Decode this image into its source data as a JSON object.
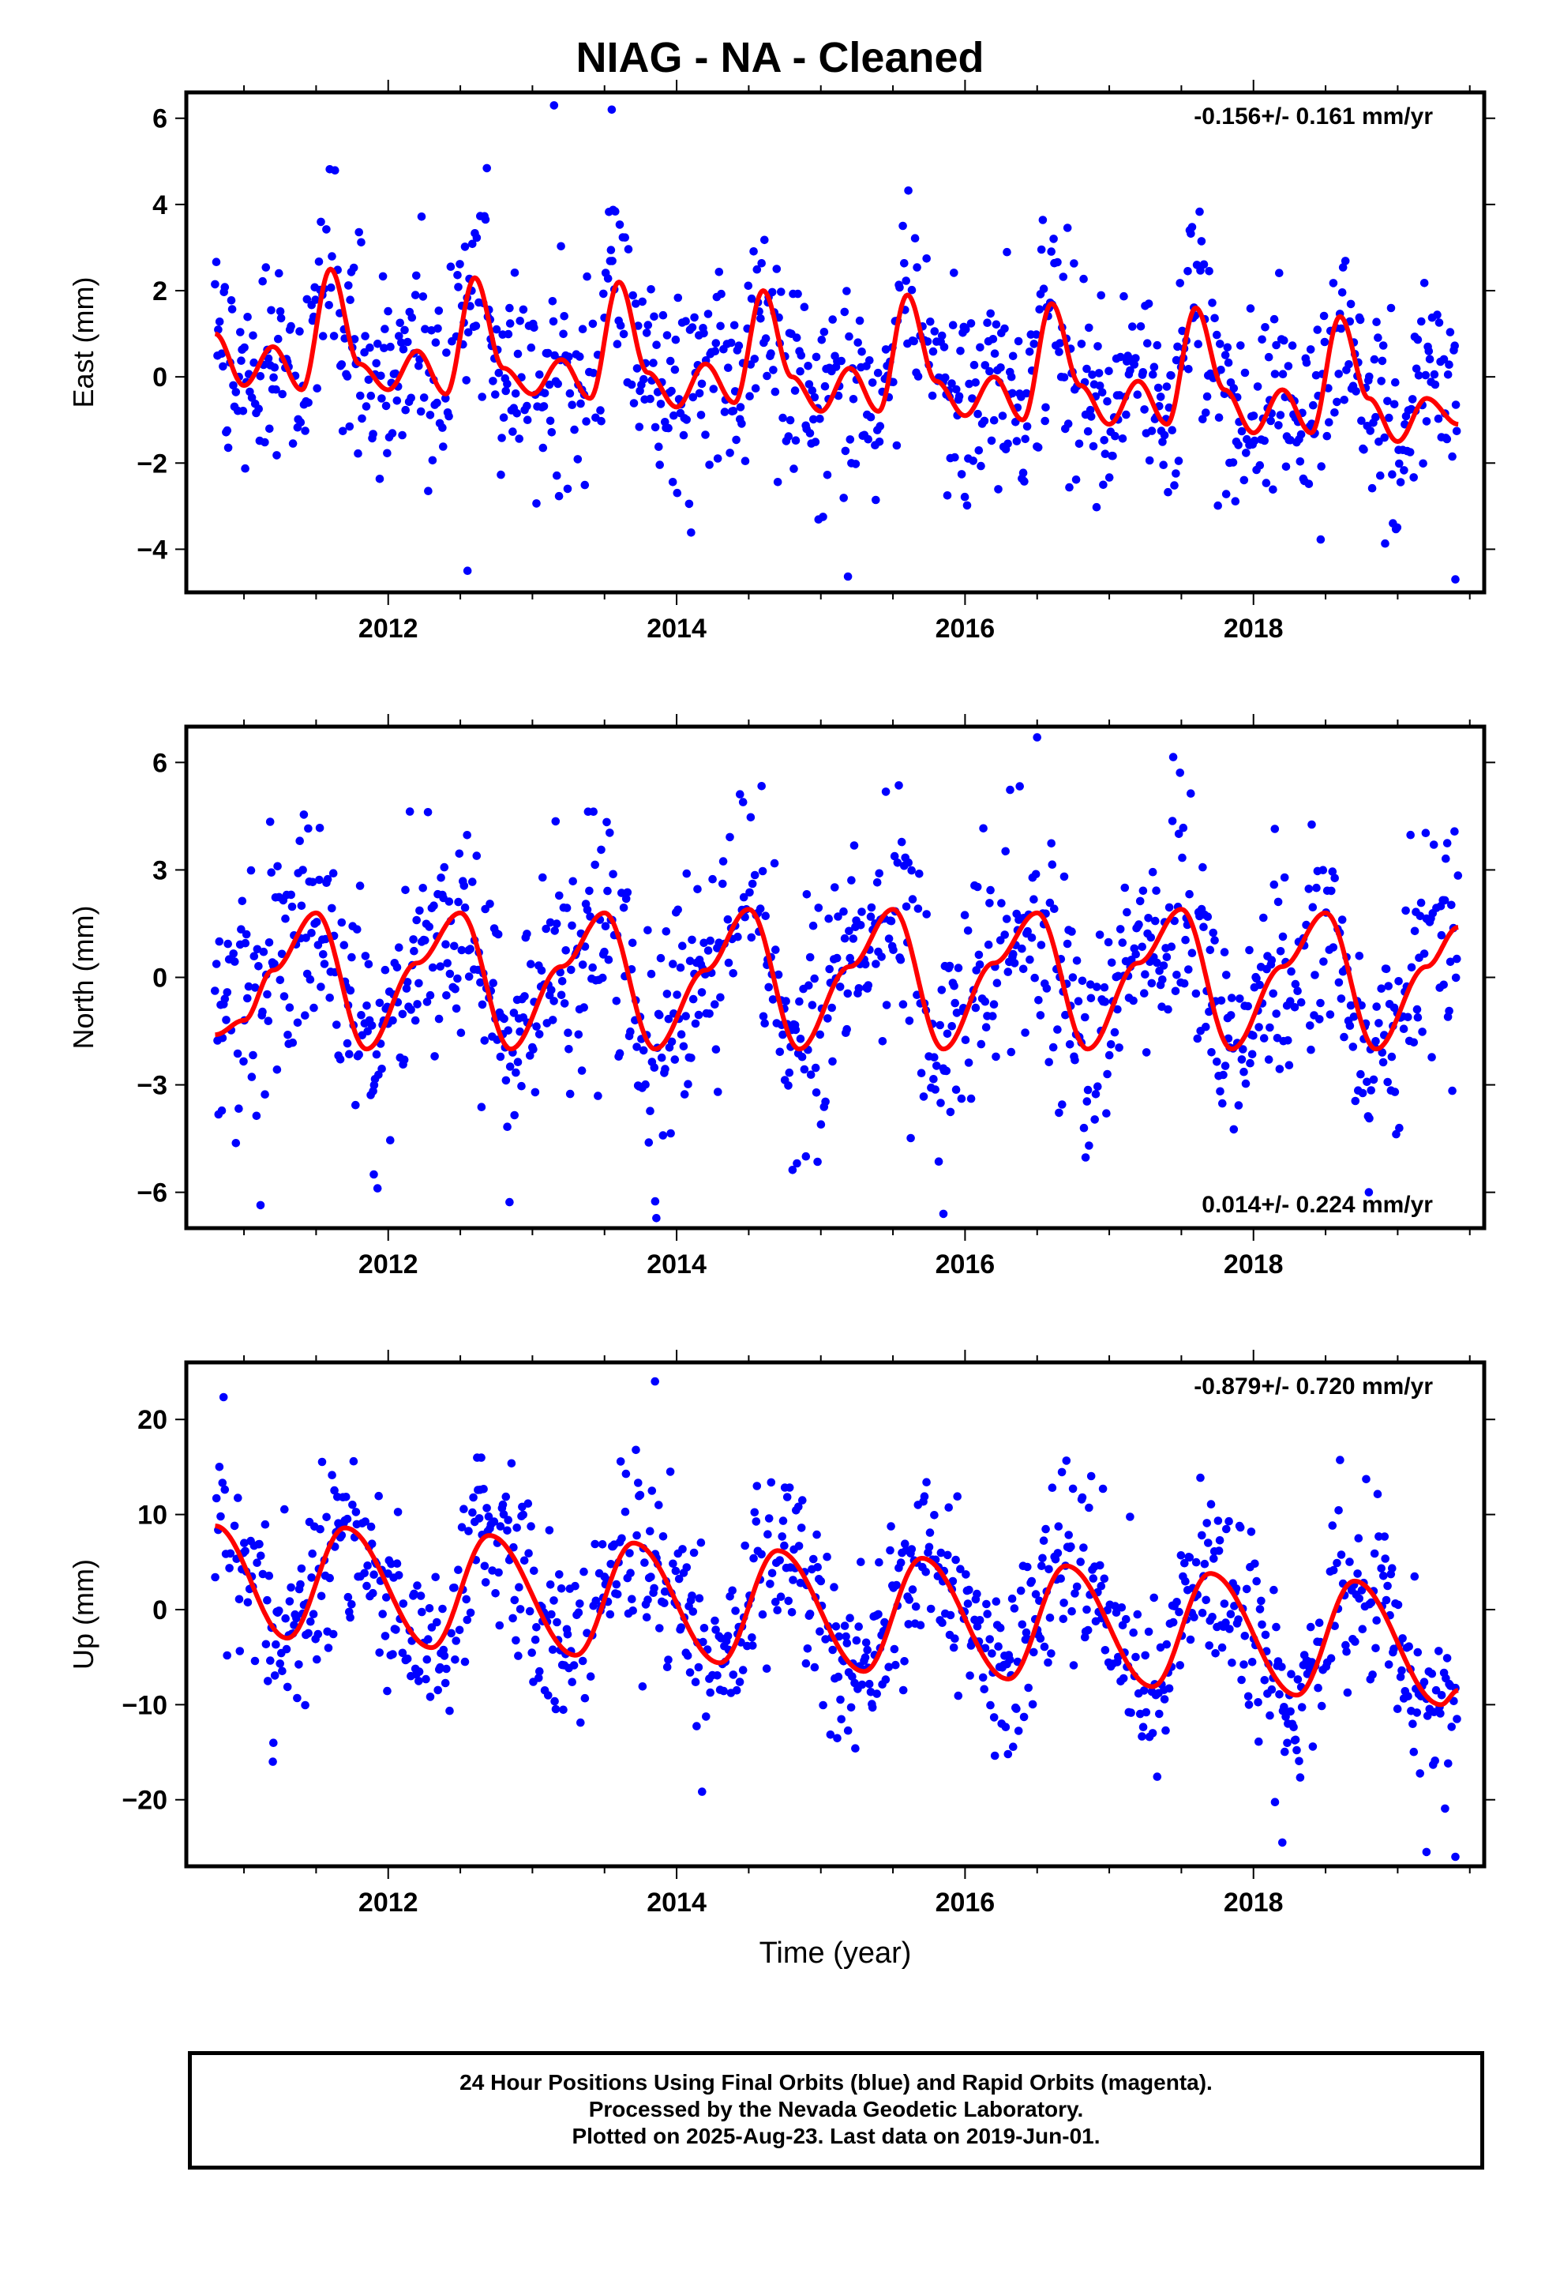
{
  "title": "NIAG  - NA - Cleaned",
  "footer": {
    "line1": "24 Hour Positions Using Final Orbits (blue) and Rapid Orbits (magenta).",
    "line2": "Processed by the Nevada Geodetic Laboratory.",
    "line3": "Plotted on 2025-Aug-23. Last data on 2019-Jun-01."
  },
  "colors": {
    "points": "#0000ff",
    "fit": "#ff0000",
    "frame": "#000000"
  },
  "chart_data": [
    {
      "type": "scatter",
      "ylabel": "East (mm)",
      "xlabel": "",
      "annotation": "-0.156+/- 0.161 mm/yr",
      "annotation_position": "top-right",
      "xlim": [
        2010.6,
        2019.6
      ],
      "ylim": [
        -5,
        6.6
      ],
      "xticks": [
        2012,
        2014,
        2016,
        2018
      ],
      "yticks": [
        -4,
        -2,
        0,
        2,
        4,
        6
      ],
      "fit": {
        "name": "model",
        "x": [
          2010.8,
          2011.0,
          2011.2,
          2011.4,
          2011.6,
          2011.8,
          2012.0,
          2012.2,
          2012.4,
          2012.6,
          2012.8,
          2013.0,
          2013.2,
          2013.4,
          2013.6,
          2013.8,
          2014.0,
          2014.2,
          2014.4,
          2014.6,
          2014.8,
          2015.0,
          2015.2,
          2015.4,
          2015.6,
          2015.8,
          2016.0,
          2016.2,
          2016.4,
          2016.6,
          2016.8,
          2017.0,
          2017.2,
          2017.4,
          2017.6,
          2017.8,
          2018.0,
          2018.2,
          2018.4,
          2018.6,
          2018.8,
          2019.0,
          2019.2,
          2019.42
        ],
        "y": [
          1.0,
          -0.2,
          0.7,
          -0.3,
          2.5,
          0.3,
          -0.3,
          0.6,
          -0.4,
          2.3,
          0.2,
          -0.4,
          0.4,
          -0.5,
          2.2,
          0.1,
          -0.7,
          0.3,
          -0.6,
          2.0,
          0.0,
          -0.8,
          0.2,
          -0.8,
          1.9,
          -0.1,
          -0.9,
          0.0,
          -1.0,
          1.7,
          -0.2,
          -1.1,
          -0.1,
          -1.1,
          1.6,
          -0.3,
          -1.3,
          -0.3,
          -1.3,
          1.4,
          -0.5,
          -1.5,
          -0.5,
          -1.1
        ]
      },
      "scatter": {
        "amplitude": 1.2,
        "outliers": [
          [
            2013.15,
            6.3
          ],
          [
            2013.55,
            6.2
          ],
          [
            2012.55,
            -4.5
          ],
          [
            2019.4,
            -4.7
          ]
        ]
      }
    },
    {
      "type": "scatter",
      "ylabel": "North (mm)",
      "xlabel": "",
      "annotation": "0.014+/- 0.224 mm/yr",
      "annotation_position": "bottom-right",
      "xlim": [
        2010.6,
        2019.6
      ],
      "ylim": [
        -7,
        7
      ],
      "xticks": [
        2012,
        2014,
        2016,
        2018
      ],
      "yticks": [
        -6,
        -3,
        0,
        3,
        6
      ],
      "fit": {
        "name": "model",
        "x": [
          2010.8,
          2011.0,
          2011.2,
          2011.5,
          2011.85,
          2012.2,
          2012.5,
          2012.85,
          2013.2,
          2013.5,
          2013.85,
          2014.2,
          2014.5,
          2014.85,
          2015.2,
          2015.5,
          2015.85,
          2016.2,
          2016.5,
          2016.85,
          2017.2,
          2017.5,
          2017.85,
          2018.2,
          2018.5,
          2018.85,
          2019.2,
          2019.42
        ],
        "y": [
          -1.6,
          -1.2,
          0.2,
          1.8,
          -2.0,
          0.4,
          1.8,
          -2.0,
          0.3,
          1.8,
          -2.0,
          0.2,
          1.9,
          -2.0,
          0.3,
          1.9,
          -2.0,
          0.4,
          1.8,
          -2.0,
          0.4,
          1.9,
          -2.0,
          0.3,
          1.8,
          -2.0,
          0.3,
          1.4
        ]
      },
      "scatter": {
        "amplitude": 1.6,
        "outliers": [
          [
            2016.5,
            6.7
          ],
          [
            2015.85,
            -6.6
          ],
          [
            2011.9,
            -5.5
          ],
          [
            2018.8,
            -6.0
          ]
        ]
      }
    },
    {
      "type": "scatter",
      "ylabel": "Up (mm)",
      "xlabel": "Time (year)",
      "annotation": "-0.879+/- 0.720 mm/yr",
      "annotation_position": "top-right",
      "xlim": [
        2010.6,
        2019.6
      ],
      "ylim": [
        -27,
        26
      ],
      "xticks": [
        2012,
        2014,
        2016,
        2018
      ],
      "yticks": [
        -20,
        -10,
        0,
        10,
        20
      ],
      "fit": {
        "name": "model",
        "x": [
          2010.8,
          2011.3,
          2011.7,
          2012.3,
          2012.7,
          2013.3,
          2013.7,
          2014.3,
          2014.7,
          2015.3,
          2015.7,
          2016.3,
          2016.7,
          2017.3,
          2017.7,
          2018.3,
          2018.7,
          2019.3,
          2019.42
        ],
        "y": [
          8.8,
          -3.0,
          8.6,
          -4.0,
          7.8,
          -4.8,
          7.0,
          -5.6,
          6.2,
          -6.5,
          5.4,
          -7.3,
          4.6,
          -8.1,
          3.8,
          -9.0,
          3.0,
          -10.0,
          -8.5
        ]
      },
      "scatter": {
        "amplitude": 4.8,
        "outliers": [
          [
            2013.85,
            24.0
          ],
          [
            2019.4,
            -26.0
          ],
          [
            2019.2,
            -25.5
          ],
          [
            2018.2,
            -24.5
          ],
          [
            2011.2,
            -16.0
          ]
        ]
      }
    }
  ]
}
